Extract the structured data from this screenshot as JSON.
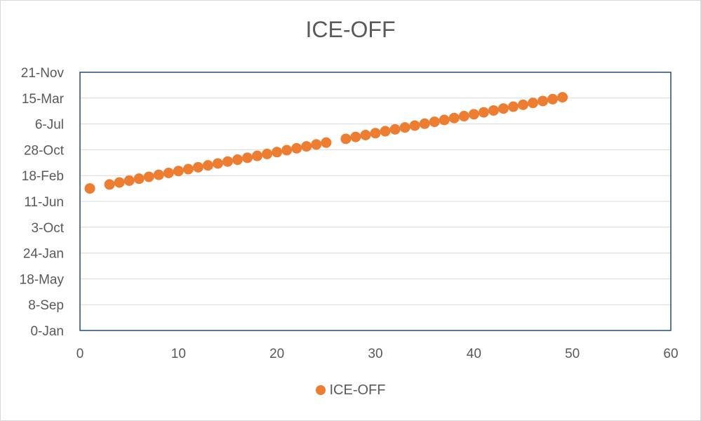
{
  "chart_data": {
    "type": "scatter",
    "title": "ICE-OFF",
    "xlabel": "",
    "ylabel": "",
    "xlim": [
      0,
      60
    ],
    "ylim": [
      0,
      50000
    ],
    "x_ticks": [
      0,
      10,
      20,
      30,
      40,
      50,
      60
    ],
    "y_ticks": [
      {
        "value": 0,
        "label": "0-Jan"
      },
      {
        "value": 5000,
        "label": "8-Sep"
      },
      {
        "value": 10000,
        "label": "18-May"
      },
      {
        "value": 15000,
        "label": "24-Jan"
      },
      {
        "value": 20000,
        "label": "3-Oct"
      },
      {
        "value": 25000,
        "label": "11-Jun"
      },
      {
        "value": 30000,
        "label": "18-Feb"
      },
      {
        "value": 35000,
        "label": "28-Oct"
      },
      {
        "value": 40000,
        "label": "6-Jul"
      },
      {
        "value": 45000,
        "label": "15-Mar"
      },
      {
        "value": 50000,
        "label": "21-Nov"
      }
    ],
    "grid": true,
    "legend_position": "bottom",
    "series": [
      {
        "name": "ICE-OFF",
        "color": "#ed7d31",
        "x": [
          1,
          3,
          4,
          5,
          6,
          7,
          8,
          9,
          10,
          11,
          12,
          13,
          14,
          15,
          16,
          17,
          18,
          19,
          20,
          21,
          22,
          23,
          24,
          25,
          27,
          28,
          29,
          30,
          31,
          32,
          33,
          34,
          35,
          36,
          37,
          38,
          39,
          40,
          41,
          42,
          43,
          44,
          45,
          46,
          47,
          48,
          49
        ],
        "y": [
          27500,
          28275,
          28654,
          29017,
          29395,
          29759,
          30141,
          30511,
          30878,
          31243,
          31614,
          31973,
          32343,
          32713,
          33081,
          33447,
          33809,
          34181,
          34543,
          34917,
          35280,
          35651,
          36018,
          36383,
          37110,
          37476,
          37843,
          38209,
          38581,
          38947,
          39311,
          39677,
          40042,
          40408,
          40772,
          41140,
          41500,
          41868,
          42241,
          42603,
          42972,
          43334,
          43706,
          44068,
          44433,
          44798,
          45160
        ]
      }
    ]
  }
}
